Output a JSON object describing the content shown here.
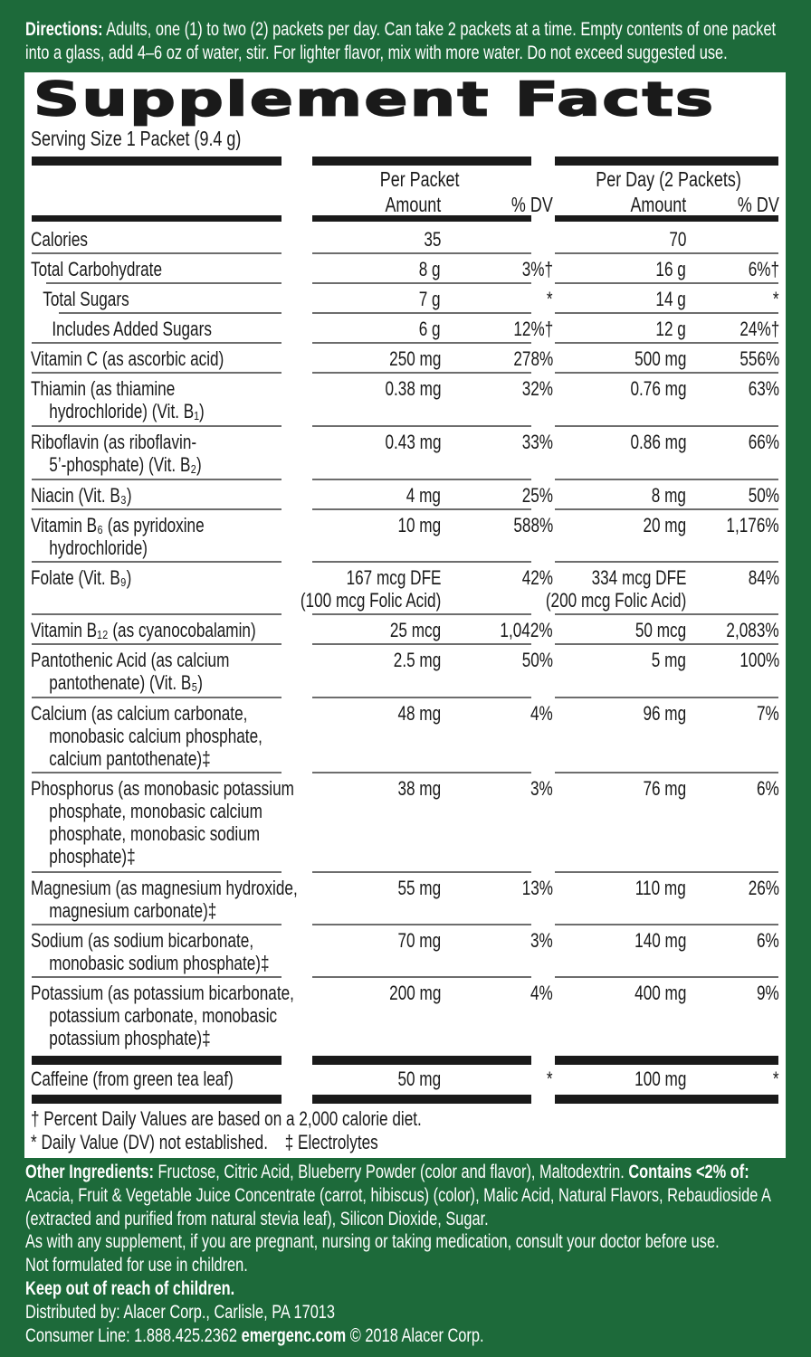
{
  "directions": {
    "label": "Directions:",
    "text": " Adults, one (1) to two (2) packets per day. Can take 2 packets at a time. Empty contents of one packet into a glass, add 4–6 oz of water, stir. For lighter flavor, mix with more water. Do not exceed suggested use."
  },
  "panel": {
    "title": "Supplement Facts",
    "serving_size": "Serving Size 1 Packet (9.4 g)",
    "headers": {
      "per_packet": "Per Packet",
      "per_day": "Per Day (2 Packets)",
      "amount": "Amount",
      "dv": "% DV"
    },
    "rows": [
      {
        "label": "Calories",
        "label2": "",
        "label3": "",
        "label4": "",
        "packet_amount": "35",
        "packet_amount2": "",
        "packet_dv": "",
        "day_amount": "70",
        "day_amount2": "",
        "day_dv": ""
      },
      {
        "label": "Total Carbohydrate",
        "label2": "",
        "label3": "",
        "label4": "",
        "packet_amount": "8 g",
        "packet_amount2": "",
        "packet_dv": "3%†",
        "day_amount": "16 g",
        "day_amount2": "",
        "day_dv": "6%†"
      },
      {
        "label": "Total Sugars",
        "label2": "",
        "label3": "",
        "label4": "",
        "packet_amount": "7 g",
        "packet_amount2": "",
        "packet_dv": "*",
        "day_amount": "14 g",
        "day_amount2": "",
        "day_dv": "*"
      },
      {
        "label": "Includes Added Sugars",
        "label2": "",
        "label3": "",
        "label4": "",
        "packet_amount": "6 g",
        "packet_amount2": "",
        "packet_dv": "12%†",
        "day_amount": "12 g",
        "day_amount2": "",
        "day_dv": "24%†"
      },
      {
        "label": "Vitamin C (as ascorbic acid)",
        "label2": "",
        "label3": "",
        "label4": "",
        "packet_amount": "250 mg",
        "packet_amount2": "",
        "packet_dv": "278%",
        "day_amount": "500 mg",
        "day_amount2": "",
        "day_dv": "556%"
      },
      {
        "label": "Thiamin (as thiamine",
        "label2": "hydrochloride) (Vit. B₁)",
        "label3": "",
        "label4": "",
        "packet_amount": "0.38 mg",
        "packet_amount2": "",
        "packet_dv": "32%",
        "day_amount": "0.76 mg",
        "day_amount2": "",
        "day_dv": "63%"
      },
      {
        "label": "Riboflavin (as riboflavin-",
        "label2": "5’-phosphate) (Vit. B₂)",
        "label3": "",
        "label4": "",
        "packet_amount": "0.43 mg",
        "packet_amount2": "",
        "packet_dv": "33%",
        "day_amount": "0.86 mg",
        "day_amount2": "",
        "day_dv": "66%"
      },
      {
        "label": "Niacin (Vit. B₃)",
        "label2": "",
        "label3": "",
        "label4": "",
        "packet_amount": "4 mg",
        "packet_amount2": "",
        "packet_dv": "25%",
        "day_amount": "8 mg",
        "day_amount2": "",
        "day_dv": "50%"
      },
      {
        "label": "Vitamin B₆ (as pyridoxine",
        "label2": "hydrochloride)",
        "label3": "",
        "label4": "",
        "packet_amount": "10 mg",
        "packet_amount2": "",
        "packet_dv": "588%",
        "day_amount": "20 mg",
        "day_amount2": "",
        "day_dv": "1,176%"
      },
      {
        "label": "Folate (Vit. B₉)",
        "label2": "",
        "label3": "",
        "label4": "",
        "packet_amount": "167 mcg DFE",
        "packet_amount2": "(100 mcg Folic Acid)",
        "packet_dv": "42%",
        "day_amount": "334 mcg DFE",
        "day_amount2": "(200 mcg Folic Acid)",
        "day_dv": "84%"
      },
      {
        "label": "Vitamin B₁₂ (as cyanocobalamin)",
        "label2": "",
        "label3": "",
        "label4": "",
        "packet_amount": "25 mcg",
        "packet_amount2": "",
        "packet_dv": "1,042%",
        "day_amount": "50 mcg",
        "day_amount2": "",
        "day_dv": "2,083%"
      },
      {
        "label": "Pantothenic Acid (as calcium",
        "label2": "pantothenate) (Vit. B₅)",
        "label3": "",
        "label4": "",
        "packet_amount": "2.5 mg",
        "packet_amount2": "",
        "packet_dv": "50%",
        "day_amount": "5 mg",
        "day_amount2": "",
        "day_dv": "100%"
      },
      {
        "label": "Calcium (as calcium carbonate,",
        "label2": "monobasic calcium  phosphate,",
        "label3": "calcium pantothenate)‡",
        "label4": "",
        "packet_amount": "48 mg",
        "packet_amount2": "",
        "packet_dv": "4%",
        "day_amount": "96 mg",
        "day_amount2": "",
        "day_dv": "7%"
      },
      {
        "label": "Phosphorus (as monobasic potassium",
        "label2": "phosphate, monobasic calcium",
        "label3": "phosphate, monobasic sodium",
        "label4": "phosphate)‡",
        "packet_amount": "38 mg",
        "packet_amount2": "",
        "packet_dv": "3%",
        "day_amount": "76 mg",
        "day_amount2": "",
        "day_dv": "6%"
      },
      {
        "label": "Magnesium (as magnesium hydroxide,",
        "label2": "magnesium carbonate)‡",
        "label3": "",
        "label4": "",
        "packet_amount": "55 mg",
        "packet_amount2": "",
        "packet_dv": "13%",
        "day_amount": "110 mg",
        "day_amount2": "",
        "day_dv": "26%"
      },
      {
        "label": "Sodium (as sodium bicarbonate,",
        "label2": "monobasic sodium phosphate)‡",
        "label3": "",
        "label4": "",
        "packet_amount": "70 mg",
        "packet_amount2": "",
        "packet_dv": "3%",
        "day_amount": "140 mg",
        "day_amount2": "",
        "day_dv": "6%"
      },
      {
        "label": "Potassium (as potassium bicarbonate,",
        "label2": "potassium carbonate, monobasic",
        "label3": "potassium phosphate)‡",
        "label4": "",
        "packet_amount": "200 mg",
        "packet_amount2": "",
        "packet_dv": "4%",
        "day_amount": "400 mg",
        "day_amount2": "",
        "day_dv": "9%"
      }
    ],
    "caffeine": {
      "label": "Caffeine (from green tea leaf)",
      "packet_amount": "50 mg",
      "packet_dv": "*",
      "day_amount": "100 mg",
      "day_dv": "*"
    },
    "footnotes": {
      "dagger": "† Percent Daily Values are based on a 2,000 calorie diet.",
      "asterisk": "* Daily Value (DV) not established.",
      "double_dagger": "‡ Electrolytes"
    }
  },
  "other": {
    "ingredients_label": "Other Ingredients:",
    "ingredients_text": " Fructose, Citric Acid, Blueberry Powder (color and flavor), Maltodextrin. ",
    "contains_label": "Contains <2% of:",
    "contains_text": " Acacia, Fruit & Vegetable Juice Concentrate (carrot, hibiscus) (color), Malic Acid, Natural Flavors, Rebaudioside A (extracted and purified from natural stevia leaf), Silicon Dioxide, Sugar.",
    "warning": "As with any supplement, if you are pregnant, nursing or taking medication, consult your doctor before use.",
    "children": "Not formulated for use in children.",
    "keep_out": "Keep out of reach of children.",
    "distributed": "Distributed by: Alacer Corp., Carlisle, PA 17013",
    "consumer_line": "Consumer Line: 1.888.425.2362 ",
    "website": "emergenc.com",
    "copyright": " © 2018 Alacer Corp."
  },
  "colors": {
    "background": "#1d6a3a",
    "panel": "#ffffff",
    "text_dark": "#1a1a1a"
  }
}
